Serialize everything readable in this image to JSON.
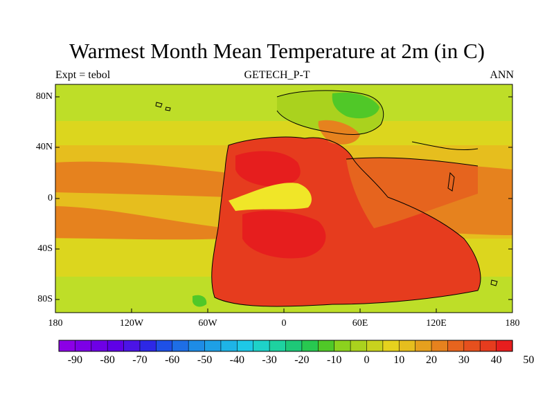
{
  "title": "Warmest Month Mean Temperature at 2m (in C)",
  "subtitle_left": "Expt = tebol",
  "subtitle_center": "GETECH_P-T",
  "subtitle_right": "ANN",
  "lat_labels": [
    "80N",
    "40N",
    "0",
    "40S",
    "80S"
  ],
  "lon_labels": [
    "180",
    "120W",
    "60W",
    "0",
    "60E",
    "120E",
    "180"
  ],
  "colorbar": {
    "colors": [
      "#8c00e6",
      "#7d00e6",
      "#6e00e6",
      "#5f00e6",
      "#4b14e6",
      "#2d28e6",
      "#1e50e6",
      "#1e6ee6",
      "#1e8ce6",
      "#1ea0e6",
      "#1eb4e6",
      "#1ec8e6",
      "#1ed2c8",
      "#1ed2a0",
      "#1ec878",
      "#28c850",
      "#50c828",
      "#8cd21e",
      "#aad21e",
      "#c8d21e",
      "#e6d21e",
      "#e6be1e",
      "#e6a01e",
      "#e6821e",
      "#e6641e",
      "#e6501e",
      "#e63c1e",
      "#e61e1e"
    ],
    "tick_labels": [
      "-90",
      "-80",
      "-70",
      "-60",
      "-50",
      "-40",
      "-30",
      "-20",
      "-10",
      "0",
      "10",
      "20",
      "30",
      "40",
      "50"
    ]
  },
  "map_colors": {
    "ocean_polar": "#bede28",
    "ocean_mid": "#dcd61e",
    "ocean_sub": "#e6be1e",
    "ocean_warm": "#e6821e",
    "ocean_hot": "#e6641e",
    "land_hot": "#e63c1e",
    "land_core": "#e61e1e",
    "land_cool": "#f0e628",
    "land_cold": "#50c828",
    "land_mild": "#aad21e"
  }
}
